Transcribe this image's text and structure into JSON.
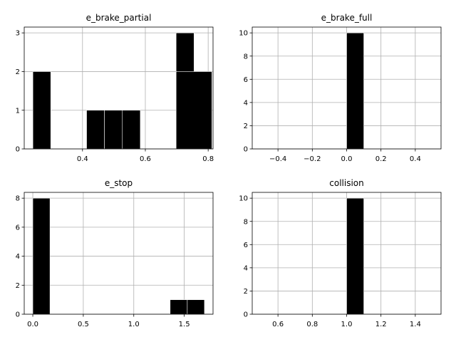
{
  "chart_data": [
    {
      "type": "bar",
      "title": "e_brake_partial",
      "xlim": [
        0.2145,
        0.8155
      ],
      "ylim": [
        0,
        3.15
      ],
      "xticks": [
        0.4,
        0.6,
        0.8
      ],
      "xtick_labels": [
        "0.4",
        "0.6",
        "0.8"
      ],
      "yticks": [
        0,
        1,
        2,
        3
      ],
      "ytick_labels": [
        "0",
        "1",
        "2",
        "3"
      ],
      "grid": true,
      "bins": [
        {
          "x0": 0.242,
          "x1": 0.299,
          "count": 2
        },
        {
          "x0": 0.413,
          "x1": 0.47,
          "count": 1
        },
        {
          "x0": 0.47,
          "x1": 0.527,
          "count": 1
        },
        {
          "x0": 0.527,
          "x1": 0.584,
          "count": 1
        },
        {
          "x0": 0.698,
          "x1": 0.755,
          "count": 3
        },
        {
          "x0": 0.755,
          "x1": 0.812,
          "count": 2
        }
      ],
      "overlays": [
        {
          "x0": 0.698,
          "x1": 0.812,
          "count": 2
        }
      ]
    },
    {
      "type": "bar",
      "title": "e_brake_full",
      "xlim": [
        -0.55,
        0.55
      ],
      "ylim": [
        0,
        10.5
      ],
      "xticks": [
        -0.4,
        -0.2,
        0.0,
        0.2,
        0.4
      ],
      "xtick_labels": [
        "−0.4",
        "−0.2",
        "0.0",
        "0.2",
        "0.4"
      ],
      "yticks": [
        0,
        2,
        4,
        6,
        8,
        10
      ],
      "ytick_labels": [
        "0",
        "2",
        "4",
        "6",
        "8",
        "10"
      ],
      "grid": true,
      "bins": [
        {
          "x0": 0.0,
          "x1": 0.1,
          "count": 10
        }
      ]
    },
    {
      "type": "bar",
      "title": "e_stop",
      "xlim": [
        -0.085,
        1.785
      ],
      "ylim": [
        0,
        8.4
      ],
      "xticks": [
        0.0,
        0.5,
        1.0,
        1.5
      ],
      "xtick_labels": [
        "0.0",
        "0.5",
        "1.0",
        "1.5"
      ],
      "yticks": [
        0,
        2,
        4,
        6,
        8
      ],
      "ytick_labels": [
        "0",
        "2",
        "4",
        "6",
        "8"
      ],
      "grid": true,
      "bins": [
        {
          "x0": 0.0,
          "x1": 0.17,
          "count": 8
        },
        {
          "x0": 1.36,
          "x1": 1.53,
          "count": 1
        },
        {
          "x0": 1.53,
          "x1": 1.7,
          "count": 1
        }
      ]
    },
    {
      "type": "bar",
      "title": "collision",
      "xlim": [
        0.45,
        1.55
      ],
      "ylim": [
        0,
        10.5
      ],
      "xticks": [
        0.6,
        0.8,
        1.0,
        1.2,
        1.4
      ],
      "xtick_labels": [
        "0.6",
        "0.8",
        "1.0",
        "1.2",
        "1.4"
      ],
      "yticks": [
        0,
        2,
        4,
        6,
        8,
        10
      ],
      "ytick_labels": [
        "0",
        "2",
        "4",
        "6",
        "8",
        "10"
      ],
      "grid": true,
      "bins": [
        {
          "x0": 1.0,
          "x1": 1.1,
          "count": 10
        }
      ]
    }
  ],
  "colors": {
    "bar_fill": "#000000",
    "bar_edge": "#ffffff",
    "grid": "#b0b0b0",
    "axes": "#000000",
    "background": "#ffffff"
  }
}
